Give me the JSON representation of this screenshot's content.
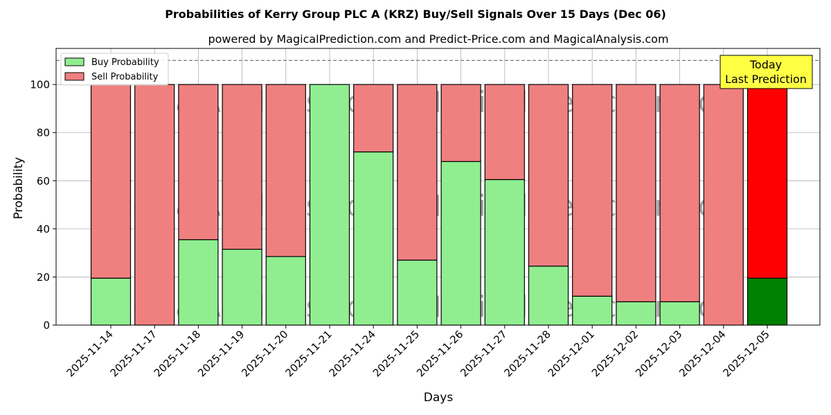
{
  "chart_data": {
    "type": "bar",
    "stacked": true,
    "title": "Probabilities of Kerry Group PLC A (KRZ) Buy/Sell Signals Over 15 Days (Dec 06)",
    "subtitle": "powered by MagicalPrediction.com and Predict-Price.com and MagicalAnalysis.com",
    "xlabel": "Days",
    "ylabel": "Probability",
    "ylim": [
      0,
      115
    ],
    "yticks": [
      0,
      20,
      40,
      60,
      80,
      100
    ],
    "grid": true,
    "legend_position": "top-left",
    "categories": [
      "2025-11-14",
      "2025-11-17",
      "2025-11-18",
      "2025-11-19",
      "2025-11-20",
      "2025-11-21",
      "2025-11-24",
      "2025-11-25",
      "2025-11-26",
      "2025-11-27",
      "2025-11-28",
      "2025-12-01",
      "2025-12-02",
      "2025-12-03",
      "2025-12-04",
      "2025-12-05"
    ],
    "series": [
      {
        "name": "Buy Probability",
        "color": "#90ee90",
        "values": [
          19.5,
          0,
          35.5,
          31.5,
          28.5,
          100,
          72,
          27,
          68,
          60.5,
          24.5,
          12,
          9.7,
          9.7,
          0,
          19.5
        ]
      },
      {
        "name": "Sell Probability",
        "color": "#f08080",
        "values": [
          80.5,
          100,
          64.5,
          68.5,
          71.5,
          0,
          28,
          73,
          32,
          39.5,
          75.5,
          88,
          90.3,
          90.3,
          100,
          80.5
        ]
      }
    ],
    "highlight": {
      "index": 15,
      "buy_color": "#008000",
      "sell_color": "#ff0000"
    },
    "reference_line": {
      "y": 110,
      "style": "dashed"
    },
    "annotation": {
      "line1": "Today",
      "line2": "Last Prediction",
      "color": "#ffff44"
    },
    "watermarks": [
      "MagicalAnalysis.com",
      "MagicalPrediction.com"
    ]
  }
}
